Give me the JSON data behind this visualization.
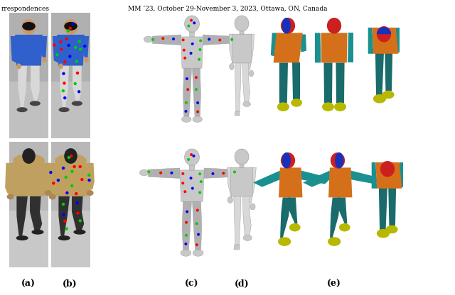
{
  "title_left": "rrespondences",
  "title_right": "MM ’23, October 29-November 3, 2023, Ottawa, ON, Canada",
  "labels": [
    "(a)",
    "(b)",
    "(c)",
    "(d)",
    "(e)"
  ],
  "bg_color": "#ffffff",
  "figsize": [
    6.4,
    4.16
  ],
  "dpi": 100,
  "colors": {
    "torso": "#D4701A",
    "torso_dark": "#8B4510",
    "legs": "#1A6B6B",
    "arms": "#1A9090",
    "head_red": "#CC2020",
    "head_blue": "#1A30BB",
    "feet": "#B8B800",
    "skin_dark": "#5A3010",
    "mesh_light": "#C8C8C8",
    "mesh_mid": "#B0B0B0",
    "mesh_dark": "#989898",
    "photo_bg1": "#AAAAAA",
    "photo_bg2": "#BBBBBB",
    "shirt_blue": "#3060CC",
    "jacket_tan": "#C0A060",
    "pants_white": "#D8D8D8",
    "pants_dark": "#303030",
    "dot_red": "#FF0000",
    "dot_green": "#00CC00",
    "dot_blue": "#0000FF"
  }
}
